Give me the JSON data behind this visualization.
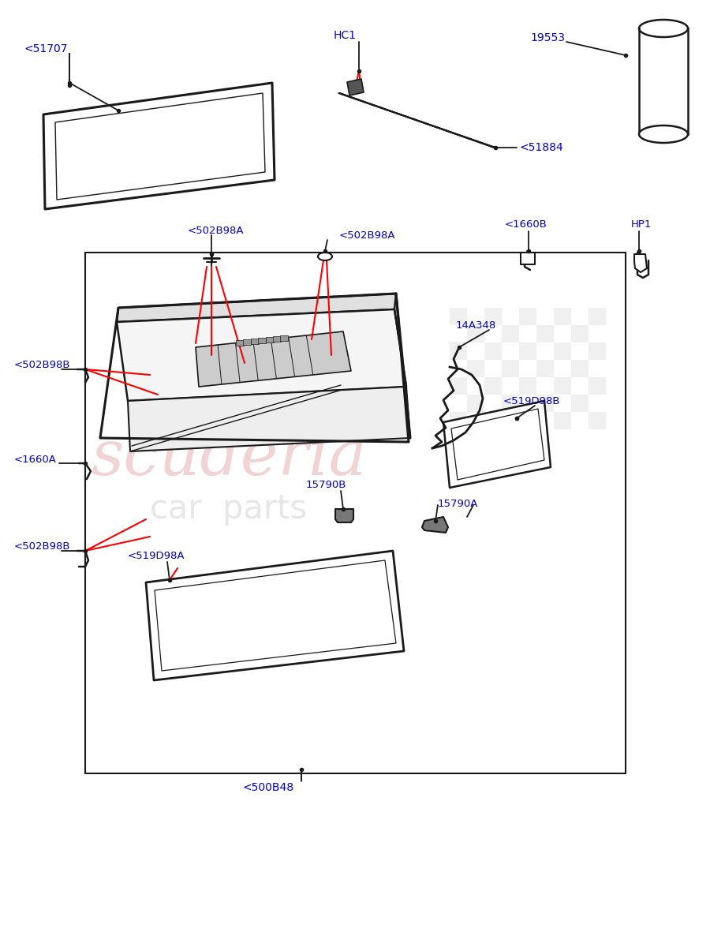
{
  "bg_color": "#ffffff",
  "lc": "#1a1a1a",
  "bc": "#0000cc",
  "rc": "#ff0000",
  "labels": {
    "51707": "<51707",
    "HC1": "HC1",
    "19553": "19553",
    "51884": "<51884",
    "1660B": "<1660B",
    "HP1": "HP1",
    "502B98A_L": "<502B98A",
    "502B98A_R": "<502B98A",
    "502B98B_T": "<502B98B",
    "502B98B_B": "<502B98B",
    "14A348": "14A348",
    "519D98B": "<519D98B",
    "1660A": "<1660A",
    "15790B": "15790B",
    "15790A": "15790A",
    "519D98A": "<519D98A",
    "500B48": "<500B48"
  }
}
